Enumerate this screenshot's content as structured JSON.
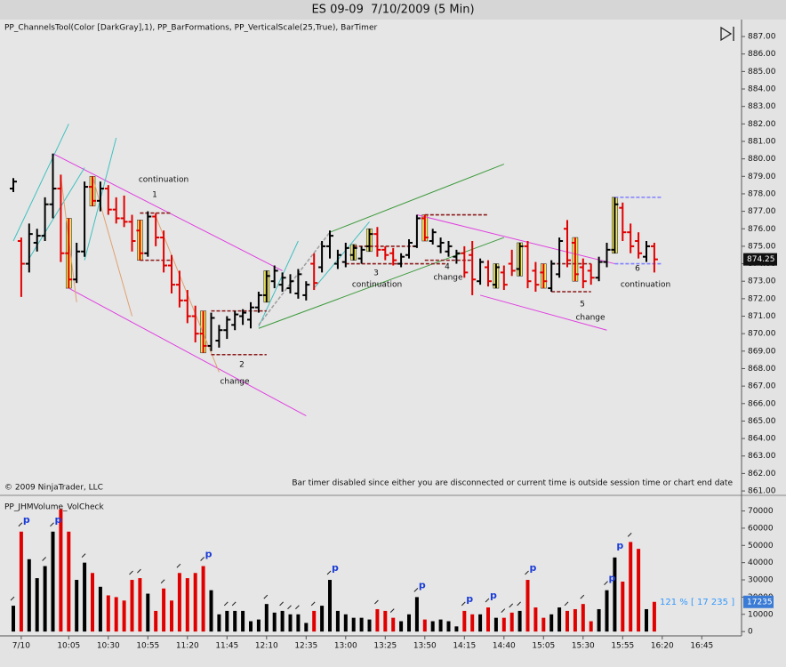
{
  "chart_data": [
    {
      "type": "ohlc",
      "title": "ES 09-09  7/10/2009 (5 Min)",
      "indicator_label": "PP_ChannelsTool(Color [DarkGray],1), PP_BarFormations, PP_VerticalScale(25,True), BarTimer",
      "copyright": "© 2009 NinjaTrader, LLC",
      "bar_timer_note": "Bar timer disabled since either you are disconnected or current time is outside session time or chart end date",
      "up_color": "#000000",
      "down_color": "#e00000",
      "open": [
        878.3,
        875.3,
        874.0,
        875.2,
        875.6,
        877.4,
        878.3,
        874.6,
        873.1,
        874.7,
        878.4,
        877.6,
        878.3,
        877.1,
        876.6,
        876.4,
        875.9,
        874.6,
        876.7,
        875.5,
        873.9,
        872.8,
        871.9,
        871.0,
        870.0,
        869.3,
        869.6,
        870.2,
        870.5,
        871.0,
        870.8,
        871.5,
        872.2,
        873.0,
        872.8,
        872.6,
        872.3,
        872.2,
        874.0,
        873.8,
        875.0,
        874.0,
        874.1,
        874.5,
        874.3,
        875.0,
        875.7,
        874.8,
        874.6,
        874.0,
        874.5,
        875.0,
        876.6,
        875.3,
        875.0,
        874.7,
        874.4,
        874.6,
        874.5,
        873.0,
        873.8,
        872.8,
        873.5,
        874.0,
        873.7,
        875.0,
        873.6,
        873.5,
        872.6,
        873.4,
        876.0,
        875.2,
        873.8,
        873.6,
        873.2,
        874.1,
        874.8,
        877.2,
        875.8,
        875.3,
        874.4,
        875.0
      ],
      "high": [
        878.9,
        875.5,
        876.3,
        876.0,
        877.8,
        880.3,
        879.1,
        876.6,
        875.2,
        878.7,
        879.0,
        878.7,
        878.5,
        877.8,
        877.9,
        876.8,
        876.5,
        877.0,
        876.9,
        875.9,
        874.5,
        873.6,
        872.5,
        871.6,
        871.3,
        871.2,
        870.5,
        871.0,
        871.3,
        871.4,
        871.8,
        872.4,
        873.6,
        873.9,
        873.5,
        873.4,
        873.7,
        873.0,
        874.6,
        875.3,
        875.9,
        874.8,
        875.2,
        875.1,
        875.0,
        876.0,
        876.1,
        875.0,
        874.9,
        874.6,
        875.4,
        876.8,
        876.8,
        876.0,
        875.5,
        875.3,
        874.8,
        875.0,
        875.3,
        874.3,
        874.2,
        874.0,
        873.9,
        874.8,
        875.2,
        875.3,
        874.1,
        874.0,
        874.2,
        875.5,
        876.5,
        875.5,
        874.3,
        874.0,
        874.4,
        875.2,
        877.8,
        877.5,
        876.3,
        875.8,
        875.3,
        875.2
      ],
      "low": [
        878.1,
        872.1,
        873.5,
        874.7,
        875.3,
        876.6,
        874.1,
        872.6,
        872.9,
        874.4,
        877.3,
        877.0,
        876.8,
        876.3,
        876.1,
        874.7,
        874.2,
        874.4,
        875.0,
        873.5,
        872.3,
        871.5,
        870.6,
        869.5,
        868.9,
        869.0,
        869.2,
        869.7,
        870.2,
        870.5,
        870.3,
        871.2,
        871.8,
        872.6,
        872.4,
        872.3,
        872.0,
        871.9,
        872.5,
        873.5,
        874.3,
        873.7,
        873.8,
        874.2,
        874.0,
        874.7,
        874.4,
        874.2,
        873.9,
        873.8,
        874.3,
        874.9,
        875.3,
        875.1,
        874.6,
        874.4,
        874.0,
        873.2,
        872.2,
        872.8,
        872.7,
        872.6,
        872.5,
        873.3,
        873.3,
        872.6,
        872.4,
        872.6,
        872.4,
        873.2,
        873.8,
        873.0,
        872.6,
        872.8,
        873.0,
        873.8,
        874.6,
        875.3,
        874.6,
        874.3,
        874.1,
        873.5
      ],
      "close": [
        878.7,
        874.0,
        875.7,
        875.6,
        877.4,
        878.3,
        874.6,
        873.1,
        874.7,
        878.4,
        877.6,
        878.3,
        877.1,
        876.6,
        876.4,
        875.3,
        874.6,
        876.7,
        875.5,
        873.9,
        872.8,
        871.9,
        871.0,
        870.0,
        869.3,
        870.9,
        870.2,
        870.8,
        871.1,
        871.2,
        871.5,
        872.2,
        873.3,
        873.6,
        873.2,
        873.0,
        873.4,
        872.8,
        872.9,
        875.0,
        875.6,
        874.5,
        874.9,
        874.9,
        874.8,
        875.7,
        874.8,
        874.5,
        874.2,
        874.4,
        875.2,
        876.6,
        875.5,
        875.8,
        875.2,
        875.0,
        874.6,
        873.5,
        873.1,
        874.1,
        873.0,
        873.8,
        872.8,
        873.6,
        875.0,
        873.0,
        872.8,
        873.0,
        874.0,
        875.3,
        874.2,
        873.4,
        873.0,
        873.2,
        874.1,
        874.8,
        877.4,
        875.8,
        875.0,
        874.6,
        875.0,
        874.25
      ],
      "ylim": [
        860.85,
        887.97
      ],
      "yticks": [
        {
          "value": 861,
          "label": "861.00"
        },
        {
          "value": 862,
          "label": "862.00"
        },
        {
          "value": 863,
          "label": "863.00"
        },
        {
          "value": 864,
          "label": "864.00"
        },
        {
          "value": 865,
          "label": "865.00"
        },
        {
          "value": 866,
          "label": "866.00"
        },
        {
          "value": 867,
          "label": "867.00"
        },
        {
          "value": 868,
          "label": "868.00"
        },
        {
          "value": 869,
          "label": "869.00"
        },
        {
          "value": 870,
          "label": "870.00"
        },
        {
          "value": 871,
          "label": "871.00"
        },
        {
          "value": 872,
          "label": "872.00"
        },
        {
          "value": 873,
          "label": "873.00"
        },
        {
          "value": 874,
          "label": "874.00"
        },
        {
          "value": 875,
          "label": "875.00"
        },
        {
          "value": 876,
          "label": "876.00"
        },
        {
          "value": 877,
          "label": "877.00"
        },
        {
          "value": 878,
          "label": "878.00"
        },
        {
          "value": 879,
          "label": "879.00"
        },
        {
          "value": 880,
          "label": "880.00"
        },
        {
          "value": 881,
          "label": "881.00"
        },
        {
          "value": 882,
          "label": "882.00"
        },
        {
          "value": 883,
          "label": "883.00"
        },
        {
          "value": 884,
          "label": "884.00"
        },
        {
          "value": 885,
          "label": "885.00"
        },
        {
          "value": 886,
          "label": "886.00"
        },
        {
          "value": 887,
          "label": "887.00"
        }
      ],
      "highlight_bars": [
        7,
        10,
        16,
        24,
        32,
        43,
        45,
        52,
        61,
        64,
        67,
        71,
        76
      ],
      "highlight_color": "#f4ec5c",
      "annotations": [
        "continuation",
        "1",
        "2",
        "change",
        "3",
        "continuation",
        "4",
        "change",
        "5",
        "change",
        "6",
        "continuation"
      ],
      "drawings": [
        {
          "color": "#e040e0",
          "dash": false,
          "x": [
            5,
            34
          ],
          "y": [
            880.3,
            873.6
          ]
        },
        {
          "color": "#e040e0",
          "dash": false,
          "x": [
            7,
            37
          ],
          "y": [
            872.6,
            865.3
          ]
        },
        {
          "color": "#e040e0",
          "dash": false,
          "x": [
            51,
            76
          ],
          "y": [
            876.8,
            874.0
          ]
        },
        {
          "color": "#e040e0",
          "dash": false,
          "x": [
            59,
            75
          ],
          "y": [
            872.2,
            870.2
          ]
        },
        {
          "color": "#3c9a3c",
          "dash": false,
          "x": [
            40,
            62
          ],
          "y": [
            875.8,
            879.7
          ]
        },
        {
          "color": "#3c9a3c",
          "dash": false,
          "x": [
            31,
            62
          ],
          "y": [
            870.3,
            875.5
          ]
        },
        {
          "color": "#40c0c0",
          "dash": false,
          "x": [
            0,
            7
          ],
          "y": [
            875.3,
            882.0
          ]
        },
        {
          "color": "#40c0c0",
          "dash": false,
          "x": [
            2,
            9
          ],
          "y": [
            874.3,
            879.5
          ]
        },
        {
          "color": "#40c0c0",
          "dash": false,
          "x": [
            9,
            13
          ],
          "y": [
            874.2,
            881.2
          ]
        },
        {
          "color": "#40c0c0",
          "dash": false,
          "x": [
            31,
            36
          ],
          "y": [
            870.4,
            875.3
          ]
        },
        {
          "color": "#40c0c0",
          "dash": false,
          "x": [
            38,
            45
          ],
          "y": [
            872.6,
            876.4
          ]
        },
        {
          "color": "#e0a070",
          "dash": false,
          "x": [
            6,
            8
          ],
          "y": [
            879.0,
            871.8
          ]
        },
        {
          "color": "#e0a070",
          "dash": false,
          "x": [
            10,
            15
          ],
          "y": [
            879.0,
            871.0
          ]
        },
        {
          "color": "#e0a070",
          "dash": false,
          "x": [
            18,
            26
          ],
          "y": [
            876.7,
            867.8
          ]
        },
        {
          "color": "#a0a0a0",
          "dash": true,
          "x": [
            31,
            40
          ],
          "y": [
            870.5,
            875.8
          ]
        },
        {
          "color": "#8b1a1a",
          "dash": true,
          "x": [
            16,
            20
          ],
          "y": [
            876.9,
            876.9
          ]
        },
        {
          "color": "#8b1a1a",
          "dash": true,
          "x": [
            16,
            20
          ],
          "y": [
            874.2,
            874.2
          ]
        },
        {
          "color": "#8b1a1a",
          "dash": true,
          "x": [
            25,
            32
          ],
          "y": [
            871.3,
            871.3
          ]
        },
        {
          "color": "#8b1a1a",
          "dash": true,
          "x": [
            25,
            32
          ],
          "y": [
            868.8,
            868.8
          ]
        },
        {
          "color": "#8b1a1a",
          "dash": true,
          "x": [
            43,
            51
          ],
          "y": [
            875.0,
            875.0
          ]
        },
        {
          "color": "#8b1a1a",
          "dash": true,
          "x": [
            42,
            55
          ],
          "y": [
            874.0,
            874.0
          ]
        },
        {
          "color": "#8b1a1a",
          "dash": true,
          "x": [
            52,
            60
          ],
          "y": [
            876.8,
            876.8
          ]
        },
        {
          "color": "#8b1a1a",
          "dash": true,
          "x": [
            52,
            58
          ],
          "y": [
            874.2,
            874.2
          ]
        },
        {
          "color": "#8b1a1a",
          "dash": true,
          "x": [
            68,
            73
          ],
          "y": [
            874.0,
            874.0
          ]
        },
        {
          "color": "#8b1a1a",
          "dash": true,
          "x": [
            68,
            73
          ],
          "y": [
            872.4,
            872.4
          ]
        },
        {
          "color": "#8080ff",
          "dash": true,
          "x": [
            76,
            82
          ],
          "y": [
            877.8,
            877.8
          ]
        },
        {
          "color": "#8080ff",
          "dash": true,
          "x": [
            76,
            82
          ],
          "y": [
            874.0,
            874.0
          ]
        }
      ]
    },
    {
      "type": "bar",
      "indicator_label": "PP_JHMVolume_VolCheck",
      "categories": [
        null,
        "7/10",
        null,
        null,
        null,
        null,
        null,
        "10:05",
        null,
        null,
        null,
        null,
        "10:30",
        null,
        null,
        null,
        null,
        "10:55",
        null,
        null,
        null,
        null,
        "11:20",
        null,
        null,
        null,
        null,
        "11:45",
        null,
        null,
        null,
        null,
        "12:10",
        null,
        null,
        null,
        null,
        "12:35",
        null,
        null,
        null,
        null,
        "13:00",
        null,
        null,
        null,
        null,
        "13:25",
        null,
        null,
        null,
        null,
        "13:50",
        null,
        null,
        null,
        null,
        "14:15",
        null,
        null,
        null,
        null,
        "14:40",
        null,
        null,
        null,
        null,
        "15:05",
        null,
        null,
        null,
        null,
        "15:30",
        null,
        null,
        null,
        null,
        "15:55",
        null,
        null,
        null,
        null,
        "16:20",
        null,
        null,
        null,
        null,
        "16:45"
      ],
      "values": [
        15000,
        58000,
        42000,
        31000,
        38000,
        58000,
        71000,
        58000,
        30000,
        40000,
        34000,
        26000,
        21000,
        20000,
        18000,
        30000,
        31000,
        22000,
        12000,
        25000,
        18000,
        34000,
        31000,
        34000,
        38000,
        24000,
        10000,
        12000,
        12000,
        12000,
        6000,
        7000,
        16000,
        11000,
        12000,
        10000,
        10000,
        5000,
        12000,
        15000,
        30000,
        12000,
        10000,
        8000,
        8000,
        7000,
        13000,
        12000,
        8000,
        6000,
        10000,
        20000,
        7000,
        6000,
        7000,
        6000,
        3000,
        12000,
        10000,
        10000,
        14000,
        8000,
        8000,
        11000,
        12000,
        30000,
        14000,
        8000,
        10000,
        14000,
        12000,
        13000,
        16000,
        6000,
        13000,
        24000,
        43000,
        29000,
        52000,
        48000,
        13000,
        17235,
        null,
        null,
        null,
        null,
        null,
        null
      ],
      "ylim": [
        -2500,
        77500
      ],
      "yticks": [
        0,
        10000,
        20000,
        30000,
        40000,
        50000,
        60000,
        70000
      ],
      "arrow_bars": [
        0,
        1,
        4,
        5,
        9,
        15,
        16,
        19,
        21,
        24,
        27,
        28,
        32,
        34,
        35,
        36,
        38,
        40,
        46,
        48,
        51,
        57,
        60,
        62,
        63,
        64,
        65,
        70,
        72,
        75,
        78
      ],
      "p_bars": [
        1,
        5,
        24,
        40,
        51,
        57,
        60,
        65,
        75,
        76
      ],
      "p_label": "p",
      "vol_check_label": "121 % [ 17 235 ]"
    }
  ]
}
